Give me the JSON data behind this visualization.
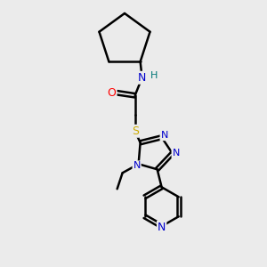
{
  "bg_color": "#ebebeb",
  "atom_colors": {
    "C": "#000000",
    "N": "#0000cc",
    "O": "#ff0000",
    "S": "#ccaa00",
    "H": "#007777"
  },
  "bond_color": "#000000",
  "bond_width": 1.8,
  "figsize": [
    3.0,
    3.0
  ],
  "dpi": 100
}
